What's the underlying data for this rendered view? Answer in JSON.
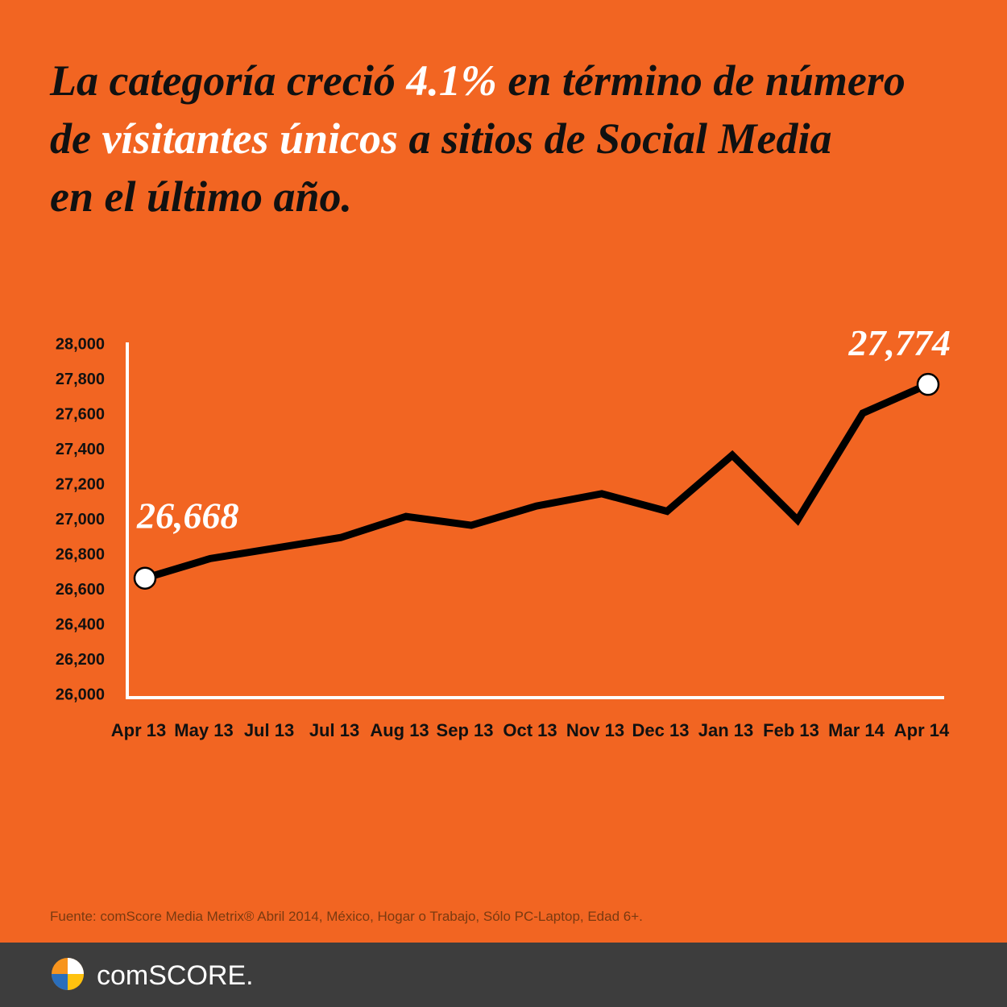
{
  "chart_data": {
    "type": "line",
    "title": [
      [
        "La categoría creció ",
        "4.1%",
        " en término de número"
      ],
      [
        "de ",
        "vísitantes únicos",
        " a sitios de Social Media"
      ],
      [
        "en el último año."
      ]
    ],
    "categories": [
      "Apr 13",
      "May 13",
      "Jul 13",
      "Jul 13",
      "Aug 13",
      "Sep 13",
      "Oct 13",
      "Nov 13",
      "Dec 13",
      "Jan 13",
      "Feb 13",
      "Mar 14",
      "Apr 14"
    ],
    "values": [
      26668,
      26780,
      26840,
      26900,
      27020,
      26970,
      27080,
      27150,
      27050,
      27370,
      27000,
      27610,
      27774
    ],
    "value_labels": [
      "26,668",
      null,
      null,
      null,
      null,
      null,
      null,
      null,
      null,
      null,
      null,
      null,
      "27,774"
    ],
    "color": "#000000",
    "ylim": [
      26000,
      28000
    ],
    "yticks": [
      {
        "value": 26000,
        "label": "26,000"
      },
      {
        "value": 26200,
        "label": "26,200"
      },
      {
        "value": 26400,
        "label": "26,400"
      },
      {
        "value": 26600,
        "label": "26,600"
      },
      {
        "value": 26800,
        "label": "26,800"
      },
      {
        "value": 27000,
        "label": "27,000"
      },
      {
        "value": 27200,
        "label": "27,200"
      },
      {
        "value": 27400,
        "label": "27,400"
      },
      {
        "value": 27600,
        "label": "27,600"
      },
      {
        "value": 27800,
        "label": "27,800"
      },
      {
        "value": 28000,
        "label": "28,000"
      }
    ],
    "source": "Fuente: comScore Media Metrix® Abril 2014, México, Hogar o Trabajo, Sólo PC-Laptop, Edad 6+.",
    "brand": "comSCORE."
  }
}
